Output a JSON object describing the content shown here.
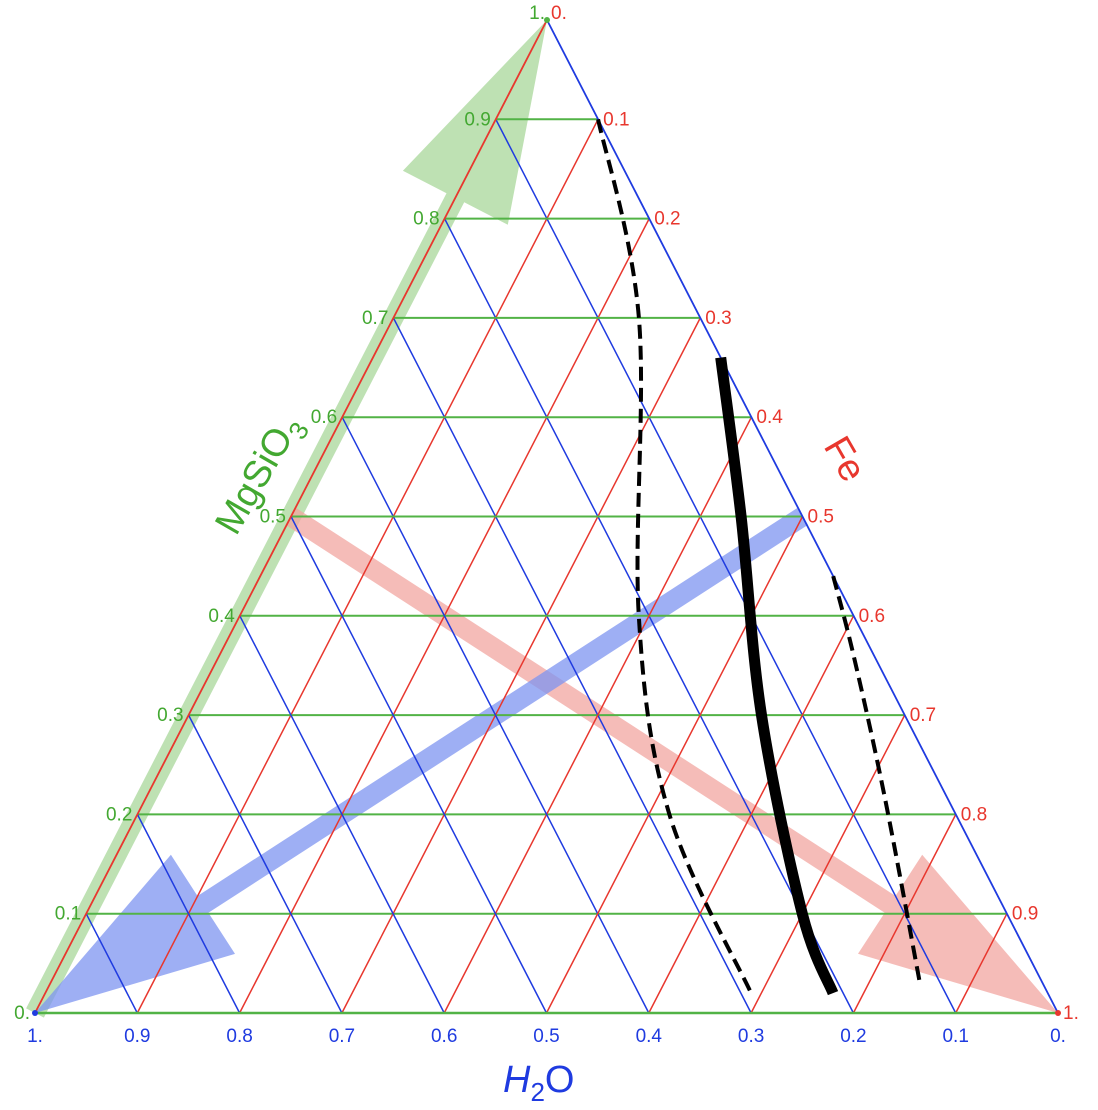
{
  "diagram": {
    "type": "ternary",
    "axes": {
      "mgsio3": {
        "title_parts": [
          "MgSiO",
          "3"
        ],
        "color": "#43a831",
        "tick_labels": [
          "0.",
          "0.1",
          "0.2",
          "0.3",
          "0.4",
          "0.5",
          "0.6",
          "0.7",
          "0.8",
          "0.9",
          "1."
        ]
      },
      "fe": {
        "title": "Fe",
        "color": "#e8372e",
        "tick_labels": [
          "0.",
          "0.1",
          "0.2",
          "0.3",
          "0.4",
          "0.5",
          "0.6",
          "0.7",
          "0.8",
          "0.9",
          "1."
        ]
      },
      "h2o": {
        "title_parts": [
          "H",
          "2",
          "O"
        ],
        "color": "#1f3be0",
        "tick_labels": [
          "1.",
          "0.9",
          "0.8",
          "0.7",
          "0.6",
          "0.5",
          "0.4",
          "0.3",
          "0.2",
          "0.1",
          "0."
        ]
      }
    },
    "grid_colors": {
      "mgsio3": "#52b346",
      "fe": "#e8372e",
      "h2o": "#1f3be0"
    },
    "arrows": [
      {
        "name": "mgsio3-arrow",
        "color": "#a8d79a",
        "from": {
          "fe": 0.0,
          "mgsio3": 0.0
        },
        "to": {
          "fe": 0.0,
          "mgsio3": 1.0
        }
      },
      {
        "name": "fe-arrow",
        "color": "#f2a6a0",
        "from": {
          "fe": 0.0,
          "mgsio3": 0.5
        },
        "to": {
          "fe": 1.0,
          "mgsio3": 0.0
        }
      },
      {
        "name": "h2o-arrow",
        "color": "#7d94f0",
        "from": {
          "fe": 0.5,
          "mgsio3": 0.5
        },
        "to": {
          "fe": 0.0,
          "mgsio3": 0.0
        }
      }
    ],
    "curves": [
      {
        "name": "solid-boundary-curve",
        "style": "solid",
        "color": "#000000",
        "points": [
          {
            "fe": 0.34,
            "mgsio3": 0.66
          },
          {
            "fe": 0.44,
            "mgsio3": 0.5
          },
          {
            "fe": 0.56,
            "mgsio3": 0.3
          },
          {
            "fe": 0.7,
            "mgsio3": 0.1
          },
          {
            "fe": 0.77,
            "mgsio3": 0.02
          }
        ]
      },
      {
        "name": "dashed-upper-curve",
        "style": "dashed",
        "color": "#000000",
        "points": [
          {
            "fe": 0.1,
            "mgsio3": 0.9
          },
          {
            "fe": 0.24,
            "mgsio3": 0.7
          },
          {
            "fe": 0.39,
            "mgsio3": 0.4
          },
          {
            "fe": 0.52,
            "mgsio3": 0.2
          },
          {
            "fe": 0.69,
            "mgsio3": 0.02
          }
        ]
      },
      {
        "name": "dashed-lower-curve",
        "style": "dashed",
        "color": "#000000",
        "points": [
          {
            "fe": 0.56,
            "mgsio3": 0.44
          },
          {
            "fe": 0.62,
            "mgsio3": 0.36
          },
          {
            "fe": 0.72,
            "mgsio3": 0.22
          },
          {
            "fe": 0.85,
            "mgsio3": 0.03
          }
        ]
      }
    ]
  }
}
